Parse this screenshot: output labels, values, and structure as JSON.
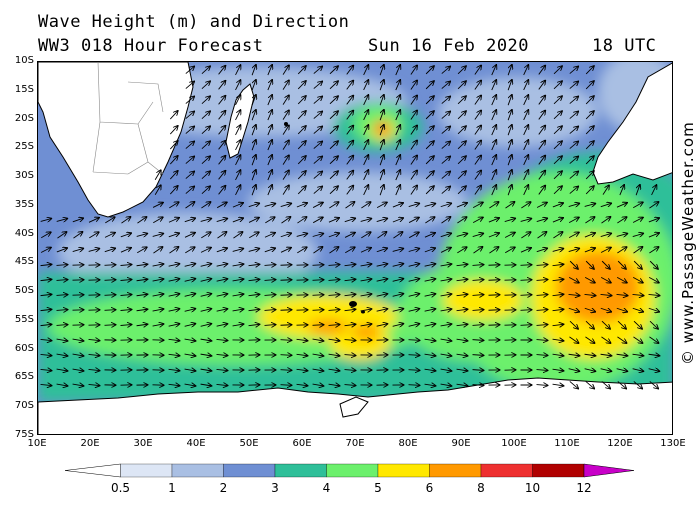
{
  "header": {
    "title": "Wave Height (m) and Direction",
    "model": "WW3 018 Hour Forecast",
    "date": "Sun 16 Feb 2020",
    "time": "18 UTC"
  },
  "credit": "© www.PassageWeather.com",
  "map": {
    "lat_labels": [
      "10S",
      "15S",
      "20S",
      "25S",
      "30S",
      "35S",
      "40S",
      "45S",
      "50S",
      "55S",
      "60S",
      "65S",
      "70S",
      "75S"
    ],
    "lon_labels": [
      "10E",
      "20E",
      "30E",
      "40E",
      "50E",
      "60E",
      "70E",
      "80E",
      "90E",
      "100E",
      "110E",
      "120E",
      "130E"
    ],
    "lat_range": [
      -10,
      -75
    ],
    "lon_range": [
      10,
      130
    ],
    "land_color": "#ffffff",
    "features": [
      "southern-africa",
      "madagascar",
      "australia",
      "antarctica",
      "kerguelen",
      "heard-island"
    ]
  },
  "legend": {
    "labels": [
      "0.5",
      "1",
      "2",
      "3",
      "4",
      "5",
      "6",
      "8",
      "10",
      "12"
    ],
    "colors": [
      "#ffffff",
      "#dde6f5",
      "#a9bfe3",
      "#6f8fd3",
      "#2fbf99",
      "#6cf06c",
      "#ffe800",
      "#ff9900",
      "#ee3030",
      "#b00000",
      "#c800c8"
    ],
    "units": "m"
  }
}
